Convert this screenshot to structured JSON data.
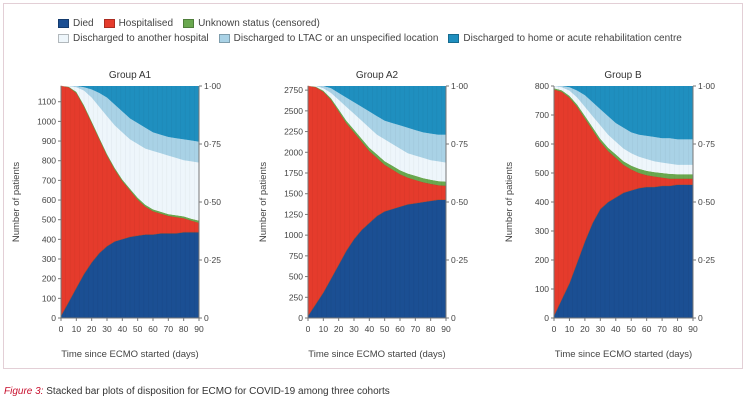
{
  "caption": {
    "label": "Figure 3:",
    "text": "Stacked bar plots of disposition for ECMO for COVID-19 among three cohorts"
  },
  "legend": [
    {
      "key": "died",
      "label": "Died",
      "color": "#1b4f93"
    },
    {
      "key": "hosp",
      "label": "Hospitalised",
      "color": "#e53b2c"
    },
    {
      "key": "unknown",
      "label": "Unknown status (censored)",
      "color": "#6aa84f"
    },
    {
      "key": "other_hosp",
      "label": "Discharged to another hospital",
      "color": "#eef6fb"
    },
    {
      "key": "ltac",
      "label": "Discharged to LTAC or an unspecified location",
      "color": "#a9d2e6"
    },
    {
      "key": "home",
      "label": "Discharged to home or acute rehabilitation centre",
      "color": "#1f8fbf"
    }
  ],
  "chart_data": [
    {
      "type": "area",
      "stacked": true,
      "title": "Group A1",
      "xlabel": "Time since ECMO started (days)",
      "ylabel": "Number of patients",
      "y2label": "",
      "x": [
        0,
        5,
        10,
        15,
        20,
        25,
        30,
        35,
        40,
        45,
        50,
        55,
        60,
        65,
        70,
        75,
        80,
        85,
        90
      ],
      "xticks": [
        0,
        10,
        20,
        30,
        40,
        50,
        60,
        70,
        80,
        90
      ],
      "xlim": [
        0,
        90
      ],
      "ylim": [
        0,
        1180
      ],
      "yticks": [
        0,
        100,
        200,
        300,
        400,
        500,
        600,
        700,
        800,
        900,
        1000,
        1100
      ],
      "y2ticks": [
        "0",
        "0·25",
        "0·50",
        "0·75",
        "1·00"
      ],
      "y2ticks_values": [
        0,
        0.25,
        0.5,
        0.75,
        1.0
      ],
      "total": 1180,
      "cumulative_proportions": {
        "died": [
          0.01,
          0.07,
          0.13,
          0.19,
          0.24,
          0.28,
          0.31,
          0.33,
          0.34,
          0.35,
          0.355,
          0.36,
          0.36,
          0.365,
          0.365,
          0.365,
          0.37,
          0.37,
          0.37
        ],
        "hosp": [
          1.0,
          0.995,
          0.97,
          0.91,
          0.84,
          0.77,
          0.7,
          0.64,
          0.59,
          0.55,
          0.51,
          0.48,
          0.46,
          0.45,
          0.44,
          0.435,
          0.43,
          0.42,
          0.41
        ],
        "unknown": [
          1.0,
          0.997,
          0.975,
          0.917,
          0.847,
          0.777,
          0.707,
          0.647,
          0.597,
          0.557,
          0.518,
          0.488,
          0.468,
          0.458,
          0.448,
          0.443,
          0.438,
          0.428,
          0.42
        ],
        "other_hosp": [
          1.0,
          1.0,
          0.995,
          0.98,
          0.95,
          0.91,
          0.87,
          0.83,
          0.8,
          0.77,
          0.75,
          0.73,
          0.72,
          0.71,
          0.7,
          0.69,
          0.68,
          0.675,
          0.67
        ],
        "ltac": [
          1.0,
          1.0,
          1.0,
          0.995,
          0.985,
          0.97,
          0.95,
          0.92,
          0.89,
          0.86,
          0.84,
          0.82,
          0.8,
          0.79,
          0.78,
          0.775,
          0.77,
          0.765,
          0.76
        ],
        "home": [
          1,
          1,
          1,
          1,
          1,
          1,
          1,
          1,
          1,
          1,
          1,
          1,
          1,
          1,
          1,
          1,
          1,
          1,
          1
        ]
      }
    },
    {
      "type": "area",
      "stacked": true,
      "title": "Group A2",
      "xlabel": "Time since ECMO started (days)",
      "ylabel": "Number of patients",
      "x": [
        0,
        5,
        10,
        15,
        20,
        25,
        30,
        35,
        40,
        45,
        50,
        55,
        60,
        65,
        70,
        75,
        80,
        85,
        90
      ],
      "xticks": [
        0,
        10,
        20,
        30,
        40,
        50,
        60,
        70,
        80,
        90
      ],
      "xlim": [
        0,
        90
      ],
      "ylim": [
        0,
        2800
      ],
      "yticks": [
        0,
        250,
        500,
        750,
        1000,
        1250,
        1500,
        1750,
        2000,
        2250,
        2500,
        2750
      ],
      "y2ticks": [
        "0",
        "0·25",
        "0·50",
        "0·75",
        "1·00"
      ],
      "y2ticks_values": [
        0,
        0.25,
        0.5,
        0.75,
        1.0
      ],
      "total": 2800,
      "cumulative_proportions": {
        "died": [
          0.01,
          0.06,
          0.11,
          0.17,
          0.23,
          0.29,
          0.34,
          0.38,
          0.41,
          0.44,
          0.46,
          0.47,
          0.48,
          0.49,
          0.495,
          0.5,
          0.505,
          0.51,
          0.51
        ],
        "hosp": [
          1.0,
          0.995,
          0.975,
          0.94,
          0.89,
          0.84,
          0.8,
          0.76,
          0.72,
          0.69,
          0.66,
          0.64,
          0.62,
          0.605,
          0.595,
          0.585,
          0.578,
          0.572,
          0.57
        ],
        "unknown": [
          1.0,
          0.997,
          0.98,
          0.947,
          0.899,
          0.851,
          0.812,
          0.773,
          0.734,
          0.705,
          0.676,
          0.657,
          0.637,
          0.623,
          0.613,
          0.603,
          0.596,
          0.59,
          0.588
        ],
        "other_hosp": [
          1.0,
          1.0,
          0.99,
          0.97,
          0.94,
          0.91,
          0.88,
          0.85,
          0.82,
          0.79,
          0.77,
          0.75,
          0.73,
          0.71,
          0.7,
          0.69,
          0.68,
          0.675,
          0.67
        ],
        "ltac": [
          1.0,
          1.0,
          1.0,
          0.99,
          0.97,
          0.95,
          0.93,
          0.91,
          0.89,
          0.87,
          0.85,
          0.84,
          0.83,
          0.82,
          0.81,
          0.8,
          0.795,
          0.79,
          0.79
        ],
        "home": [
          1,
          1,
          1,
          1,
          1,
          1,
          1,
          1,
          1,
          1,
          1,
          1,
          1,
          1,
          1,
          1,
          1,
          1,
          1
        ]
      }
    },
    {
      "type": "area",
      "stacked": true,
      "title": "Group B",
      "xlabel": "Time since ECMO started (days)",
      "ylabel": "Number of patients",
      "x": [
        0,
        5,
        10,
        15,
        20,
        25,
        30,
        35,
        40,
        45,
        50,
        55,
        60,
        65,
        70,
        75,
        80,
        85,
        90
      ],
      "xticks": [
        0,
        10,
        20,
        30,
        40,
        50,
        60,
        70,
        80,
        90
      ],
      "xlim": [
        0,
        90
      ],
      "ylim": [
        0,
        800
      ],
      "yticks": [
        0,
        100,
        200,
        300,
        400,
        500,
        600,
        700,
        800
      ],
      "y2ticks": [
        "0",
        "0·25",
        "0·50",
        "0·75",
        "1·00"
      ],
      "y2ticks_values": [
        0,
        0.25,
        0.5,
        0.75,
        1.0
      ],
      "total": 800,
      "cumulative_proportions": {
        "died": [
          0.01,
          0.08,
          0.15,
          0.24,
          0.33,
          0.41,
          0.47,
          0.5,
          0.52,
          0.54,
          0.55,
          0.56,
          0.565,
          0.565,
          0.57,
          0.57,
          0.575,
          0.575,
          0.575
        ],
        "hosp": [
          0.985,
          0.975,
          0.95,
          0.91,
          0.86,
          0.81,
          0.76,
          0.72,
          0.69,
          0.66,
          0.64,
          0.625,
          0.615,
          0.61,
          0.605,
          0.6,
          0.6,
          0.6,
          0.6
        ],
        "unknown": [
          0.99,
          0.982,
          0.958,
          0.92,
          0.871,
          0.822,
          0.773,
          0.734,
          0.705,
          0.676,
          0.657,
          0.643,
          0.634,
          0.629,
          0.625,
          0.621,
          0.62,
          0.62,
          0.62
        ],
        "other_hosp": [
          1.0,
          0.995,
          0.98,
          0.95,
          0.91,
          0.87,
          0.83,
          0.79,
          0.76,
          0.73,
          0.71,
          0.695,
          0.685,
          0.675,
          0.67,
          0.665,
          0.66,
          0.66,
          0.66
        ],
        "ltac": [
          1.0,
          1.0,
          0.995,
          0.98,
          0.96,
          0.93,
          0.9,
          0.87,
          0.84,
          0.82,
          0.8,
          0.79,
          0.785,
          0.78,
          0.775,
          0.775,
          0.77,
          0.77,
          0.77
        ],
        "home": [
          1,
          1,
          1,
          1,
          1,
          1,
          1,
          1,
          1,
          1,
          1,
          1,
          1,
          1,
          1,
          1,
          1,
          1,
          1
        ]
      }
    }
  ]
}
